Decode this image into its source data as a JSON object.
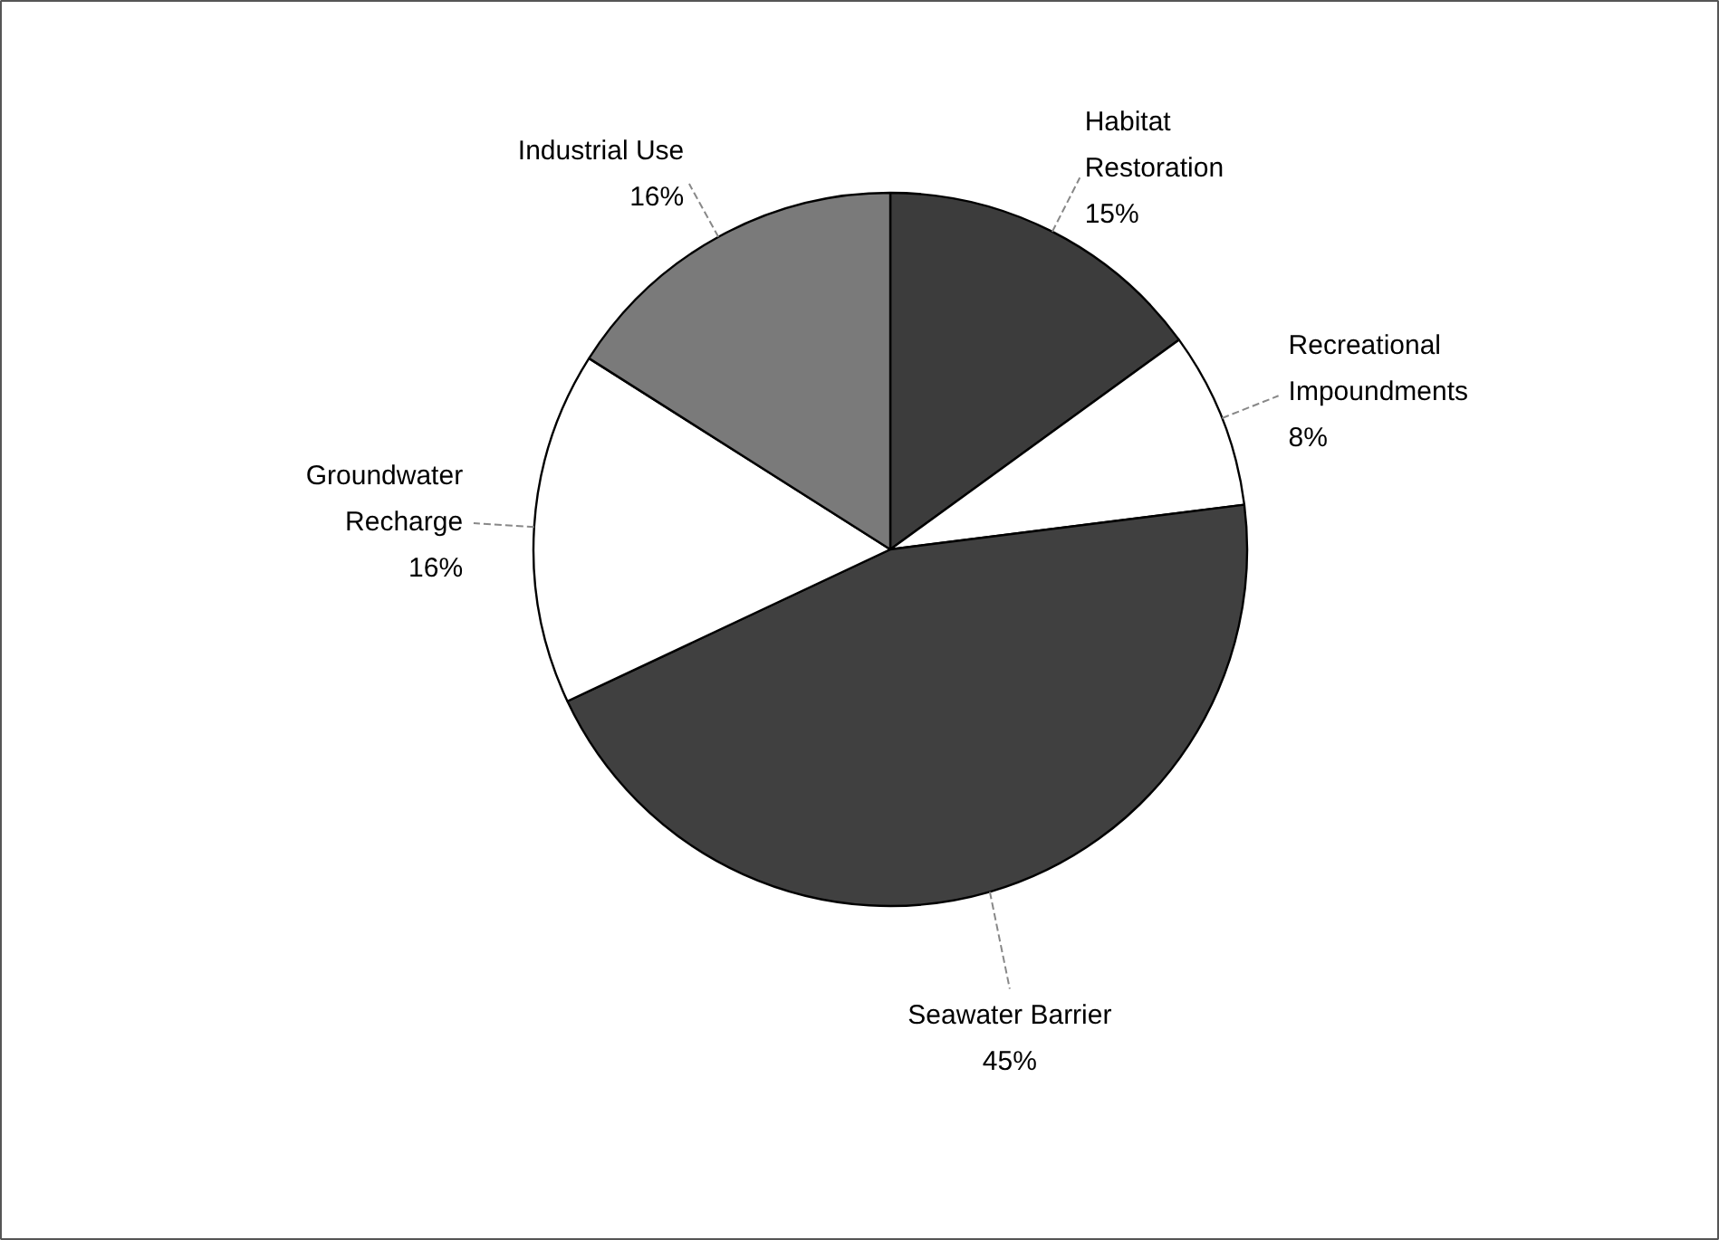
{
  "chart_data": {
    "type": "pie",
    "categories": [
      "Habitat Restoration",
      "Recreational Impoundments",
      "Seawater Barrier",
      "Groundwater Recharge",
      "Industrial Use"
    ],
    "values": [
      15,
      8,
      45,
      16,
      16
    ],
    "colors": [
      "#3c3c3c",
      "#ffffff",
      "#404040",
      "#ffffff",
      "#7a7a7a"
    ],
    "value_labels": [
      "15%",
      "8%",
      "45%",
      "16%",
      "16%"
    ]
  }
}
